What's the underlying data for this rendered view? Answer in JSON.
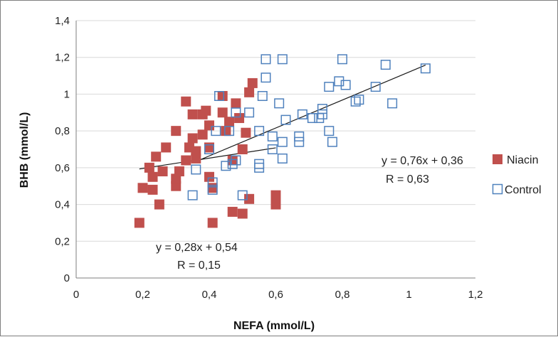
{
  "chart_data": {
    "type": "scatter",
    "xlabel": "NEFA (mmol/L)",
    "ylabel": "BHB (mmol/L)",
    "xlim": [
      0,
      1.2
    ],
    "ylim": [
      0,
      1.4
    ],
    "x_ticks": [
      "0",
      "0,2",
      "0,4",
      "0,6",
      "0,8",
      "1",
      "1,2"
    ],
    "y_ticks": [
      "0",
      "0,2",
      "0,4",
      "0,6",
      "0,8",
      "1",
      "1,2",
      "1,4"
    ],
    "grid": "horizontal",
    "legend_position": "right",
    "series": [
      {
        "name": "Niacin",
        "marker": "filled-square",
        "color": "#c0504d",
        "points": [
          [
            0.19,
            0.3
          ],
          [
            0.2,
            0.49
          ],
          [
            0.22,
            0.6
          ],
          [
            0.23,
            0.48
          ],
          [
            0.23,
            0.55
          ],
          [
            0.24,
            0.66
          ],
          [
            0.25,
            0.4
          ],
          [
            0.26,
            0.58
          ],
          [
            0.27,
            0.71
          ],
          [
            0.3,
            0.5
          ],
          [
            0.3,
            0.54
          ],
          [
            0.3,
            0.8
          ],
          [
            0.31,
            0.58
          ],
          [
            0.33,
            0.64
          ],
          [
            0.33,
            0.96
          ],
          [
            0.34,
            0.71
          ],
          [
            0.35,
            0.76
          ],
          [
            0.35,
            0.89
          ],
          [
            0.36,
            0.65
          ],
          [
            0.36,
            0.69
          ],
          [
            0.38,
            0.78
          ],
          [
            0.38,
            0.89
          ],
          [
            0.39,
            0.91
          ],
          [
            0.4,
            0.55
          ],
          [
            0.4,
            0.71
          ],
          [
            0.4,
            0.83
          ],
          [
            0.41,
            0.49
          ],
          [
            0.41,
            0.3
          ],
          [
            0.44,
            0.9
          ],
          [
            0.44,
            0.99
          ],
          [
            0.45,
            0.8
          ],
          [
            0.46,
            0.85
          ],
          [
            0.47,
            0.64
          ],
          [
            0.47,
            0.36
          ],
          [
            0.48,
            0.95
          ],
          [
            0.49,
            0.87
          ],
          [
            0.5,
            0.7
          ],
          [
            0.5,
            0.35
          ],
          [
            0.51,
            0.79
          ],
          [
            0.52,
            0.43
          ],
          [
            0.53,
            1.06
          ],
          [
            0.52,
            1.01
          ],
          [
            0.6,
            0.45
          ],
          [
            0.6,
            0.4
          ]
        ]
      },
      {
        "name": "Control",
        "marker": "hollow-square",
        "color": "#4f81bd",
        "points": [
          [
            0.35,
            0.45
          ],
          [
            0.36,
            0.59
          ],
          [
            0.4,
            0.7
          ],
          [
            0.41,
            0.48
          ],
          [
            0.41,
            0.52
          ],
          [
            0.42,
            0.8
          ],
          [
            0.43,
            0.99
          ],
          [
            0.45,
            0.61
          ],
          [
            0.46,
            0.8
          ],
          [
            0.47,
            0.62
          ],
          [
            0.48,
            0.9
          ],
          [
            0.48,
            0.64
          ],
          [
            0.5,
            0.45
          ],
          [
            0.52,
            0.9
          ],
          [
            0.55,
            0.6
          ],
          [
            0.55,
            0.62
          ],
          [
            0.55,
            0.8
          ],
          [
            0.56,
            0.99
          ],
          [
            0.57,
            1.09
          ],
          [
            0.57,
            1.19
          ],
          [
            0.59,
            0.7
          ],
          [
            0.59,
            0.77
          ],
          [
            0.61,
            0.95
          ],
          [
            0.62,
            0.65
          ],
          [
            0.62,
            0.74
          ],
          [
            0.62,
            1.19
          ],
          [
            0.63,
            0.86
          ],
          [
            0.67,
            0.74
          ],
          [
            0.67,
            0.77
          ],
          [
            0.68,
            0.89
          ],
          [
            0.71,
            0.87
          ],
          [
            0.73,
            0.87
          ],
          [
            0.74,
            0.89
          ],
          [
            0.74,
            0.92
          ],
          [
            0.76,
            0.8
          ],
          [
            0.76,
            1.04
          ],
          [
            0.77,
            0.74
          ],
          [
            0.79,
            1.07
          ],
          [
            0.8,
            1.19
          ],
          [
            0.81,
            1.05
          ],
          [
            0.84,
            0.96
          ],
          [
            0.85,
            0.97
          ],
          [
            0.9,
            1.04
          ],
          [
            0.93,
            1.16
          ],
          [
            0.95,
            0.95
          ],
          [
            1.05,
            1.14
          ]
        ]
      }
    ],
    "trendlines": [
      {
        "series": "Niacin",
        "slope": 0.28,
        "intercept": 0.54,
        "x_range": [
          0.19,
          0.6
        ]
      },
      {
        "series": "Control",
        "slope": 0.76,
        "intercept": 0.36,
        "x_range": [
          0.35,
          1.05
        ]
      }
    ],
    "annotations": [
      {
        "series": "Niacin",
        "equation": "y = 0,28x + 0,54",
        "r": "R = 0,15"
      },
      {
        "series": "Control",
        "equation": "y = 0,76x + 0,36",
        "r": "R = 0,63"
      }
    ]
  }
}
